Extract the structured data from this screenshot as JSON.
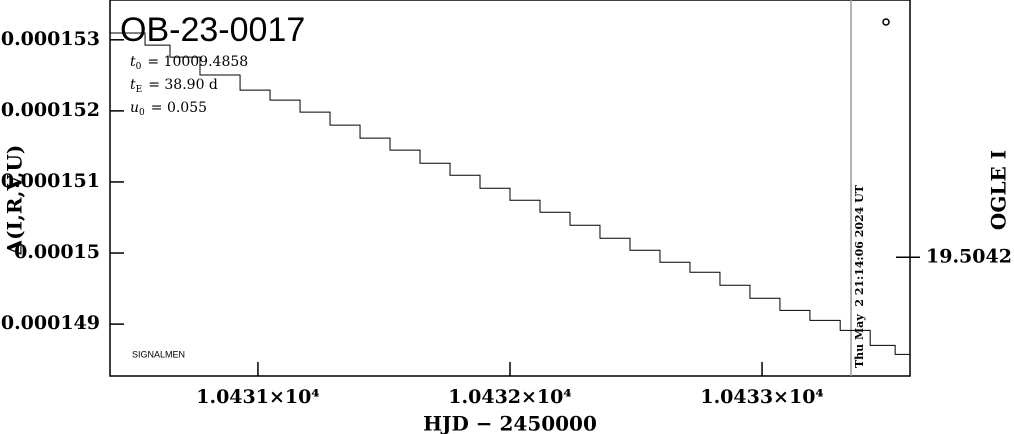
{
  "chart_data": {
    "type": "line",
    "title": "OB-23-0017",
    "parameters": [
      {
        "symbol": "t",
        "sub": "0",
        "text": "= 10009.4858"
      },
      {
        "symbol": "t",
        "sub": "E",
        "text": "= 38.90 d"
      },
      {
        "symbol": "u",
        "sub": "0",
        "text": "= 0.055"
      }
    ],
    "credit": "SIGNALMEN",
    "x_label": "HJD − 2450000",
    "y_label": "Δ(I,R,V,U)",
    "y2_label": "OGLE I",
    "line_shape": "step",
    "timestamp": {
      "x": 10433.353,
      "label": "Thu May  2 21:14:06 2024 UT",
      "color": "#999999"
    },
    "x": [
      10430.413,
      10430.552,
      10430.651,
      10430.77,
      10430.929,
      10431.048,
      10431.167,
      10431.286,
      10431.405,
      10431.524,
      10431.643,
      10431.762,
      10431.881,
      10432.0,
      10432.119,
      10432.238,
      10432.357,
      10432.476,
      10432.595,
      10432.714,
      10432.833,
      10432.952,
      10433.071,
      10433.19,
      10433.31,
      10433.429,
      10433.528
    ],
    "series": [
      {
        "color": "#000000",
        "values": [
          0.000153095,
          0.000152926,
          0.000152757,
          0.000152504,
          0.000152292,
          0.000152152,
          0.000151983,
          0.000151799,
          0.000151616,
          0.000151447,
          0.000151264,
          0.000151095,
          0.000150912,
          0.000150743,
          0.000150574,
          0.000150391,
          0.000150208,
          0.000150039,
          0.00014987,
          0.000149729,
          0.000149546,
          0.000149363,
          0.000149194,
          0.000149053,
          0.000148912,
          0.000148701,
          0.000148574
        ]
      }
    ],
    "xlim": [
      10430.413,
      10433.587
    ],
    "xticks": [
      {
        "value": 10431,
        "label": "1.0431×10⁴"
      },
      {
        "value": 10432,
        "label": "1.0432×10⁴"
      },
      {
        "value": 10433,
        "label": "1.0433×10⁴"
      }
    ],
    "ylim": [
      0.00014827,
      0.00015356
    ],
    "yticks": [
      0.000149,
      0.00015,
      0.000151,
      0.000152,
      0.000153
    ],
    "y2lim": [
      19.50426,
      19.50407
    ],
    "y2ticks": [
      19.5042
    ]
  }
}
